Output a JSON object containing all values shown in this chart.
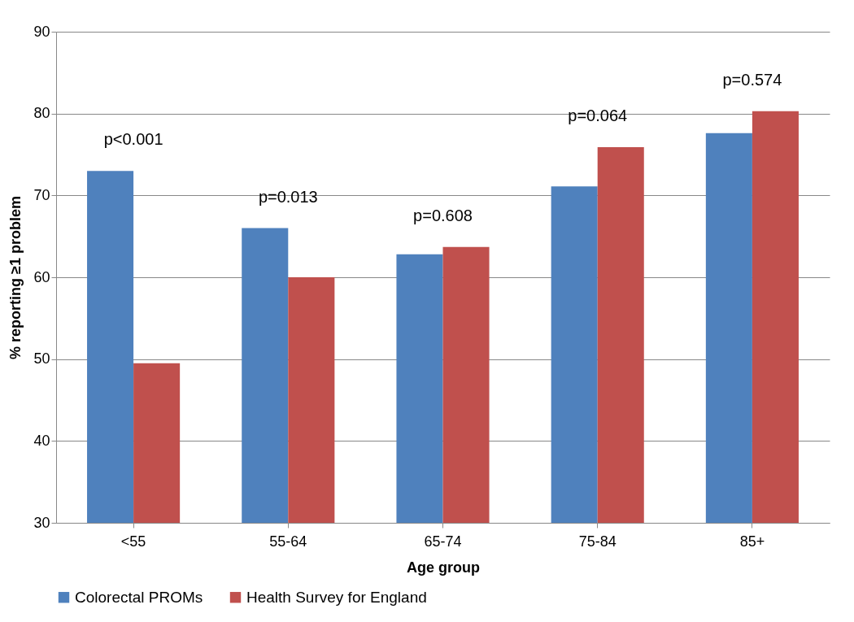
{
  "chart_data": {
    "type": "bar",
    "xlabel": "Age group",
    "ylabel": "% reporting ≥1 problem",
    "categories": [
      "<55",
      "55-64",
      "65-74",
      "75-84",
      "85+"
    ],
    "series": [
      {
        "name": "Colorectal PROMs",
        "color": "#4f81bd",
        "values": [
          73.0,
          66.0,
          62.8,
          71.1,
          77.6
        ]
      },
      {
        "name": "Health Survey for England",
        "color": "#c0504d",
        "values": [
          49.5,
          60.0,
          63.7,
          75.9,
          80.3
        ]
      }
    ],
    "ylim": [
      30,
      90
    ],
    "yticks": [
      30,
      40,
      50,
      60,
      70,
      80,
      90
    ],
    "grid": "y",
    "legend": "bottom",
    "annotations": [
      "p<0.001",
      "p=0.013",
      "p=0.608",
      "p=0.064",
      "p=0.574"
    ]
  }
}
